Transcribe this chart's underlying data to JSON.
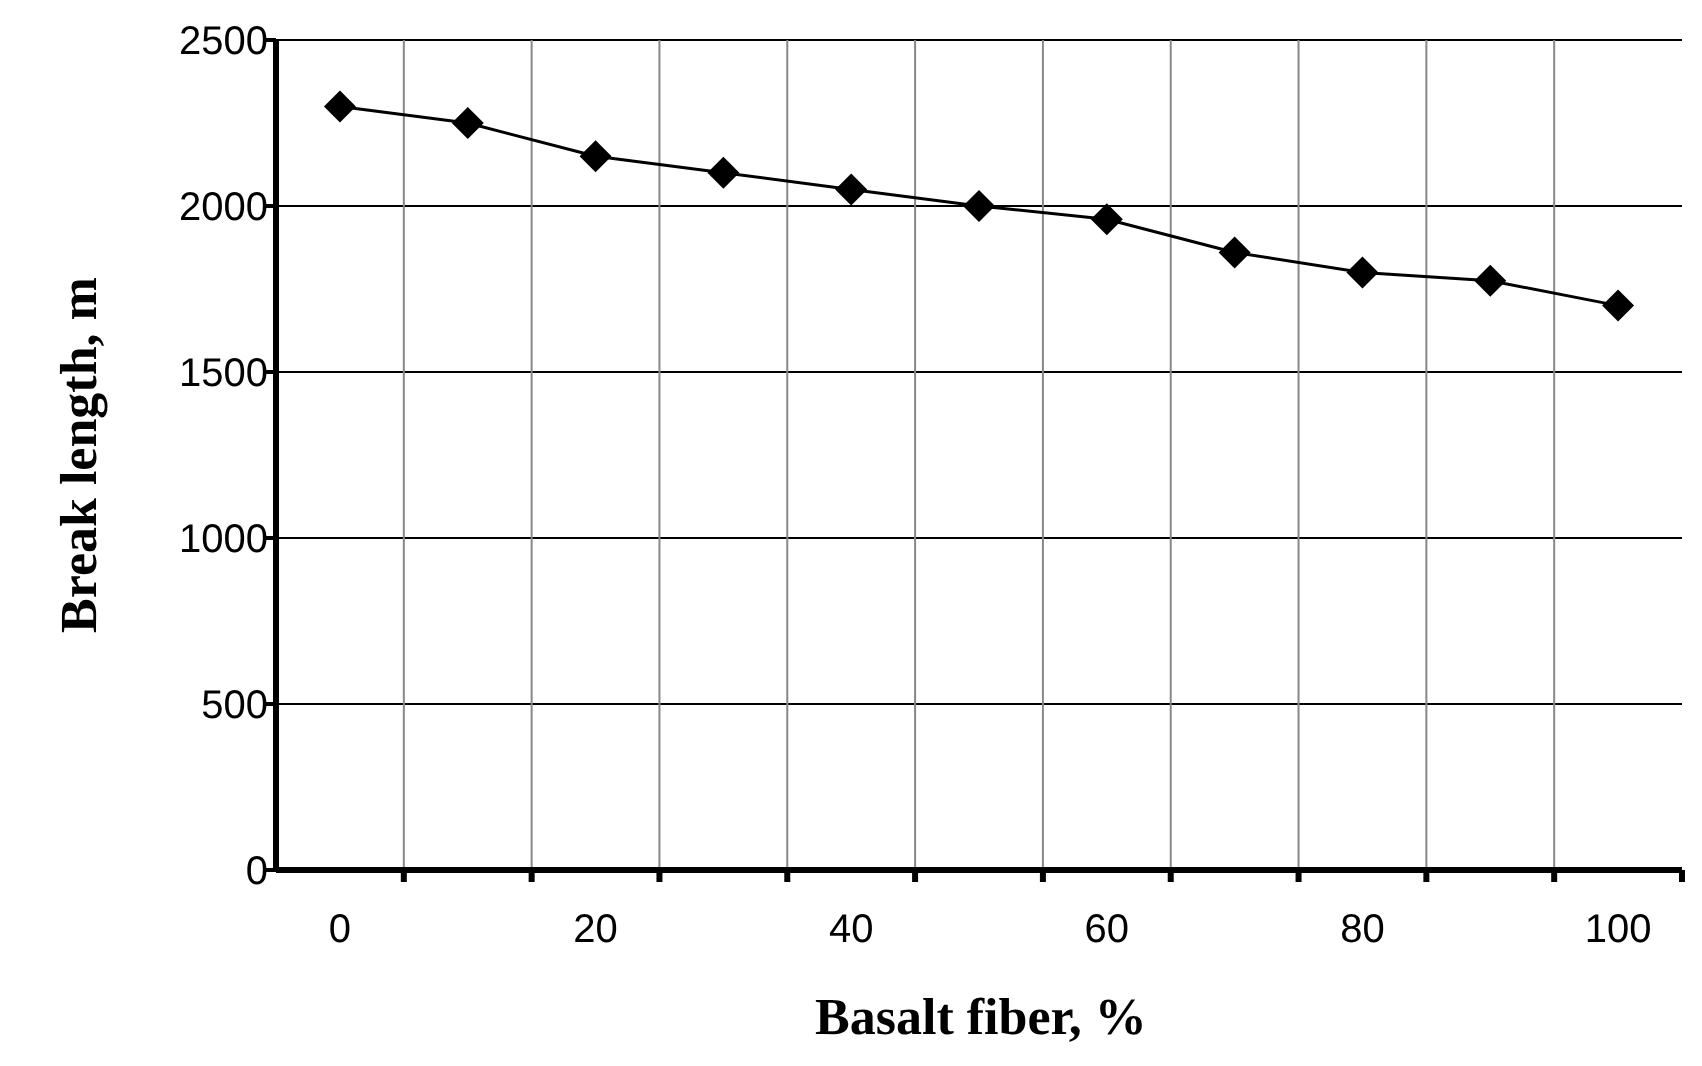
{
  "chart_data": {
    "type": "line",
    "xlabel": "Basalt fiber, %",
    "ylabel": "Break length, m",
    "categories": [
      "0",
      null,
      "20",
      null,
      "40",
      null,
      "60",
      null,
      "80",
      null,
      "100"
    ],
    "series": [
      {
        "color": "#000000",
        "values": [
          2300,
          2250,
          2150,
          2100,
          2050,
          2000,
          1960,
          1860,
          1800,
          1775,
          1700
        ]
      }
    ],
    "ylim": [
      0,
      2500
    ],
    "yticks": [
      0,
      500,
      1000,
      1500,
      2000,
      2500
    ],
    "grid": true,
    "marker": "diamond",
    "line_style": "solid"
  }
}
